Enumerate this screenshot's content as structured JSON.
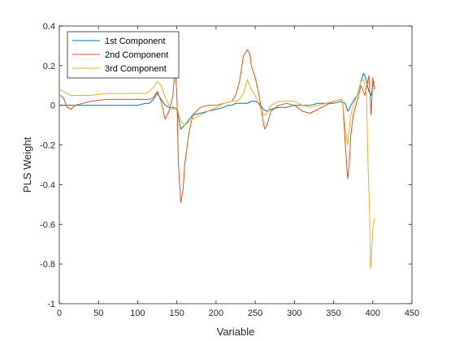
{
  "chart_data": {
    "type": "line",
    "title": "",
    "xlabel": "Variable",
    "ylabel": "PLS Weight",
    "xlim": [
      0,
      450
    ],
    "ylim": [
      -1,
      0.4
    ],
    "xticks": [
      0,
      50,
      100,
      150,
      200,
      250,
      300,
      350,
      400,
      450
    ],
    "yticks": [
      -1,
      -0.8,
      -0.6,
      -0.4,
      -0.2,
      0,
      0.2,
      0.4
    ],
    "xtick_labels": [
      "0",
      "50",
      "100",
      "150",
      "200",
      "250",
      "300",
      "350",
      "400",
      "450"
    ],
    "ytick_labels": [
      "-1",
      "-0.8",
      "-0.6",
      "-0.4",
      "-0.2",
      "0",
      "0.2",
      "0.4"
    ],
    "grid": false,
    "legend_position": "top-left",
    "series": [
      {
        "name": "1st Component",
        "color": "#0072BD",
        "x": [
          1,
          20,
          40,
          60,
          80,
          100,
          110,
          115,
          120,
          125,
          130,
          135,
          140,
          145,
          150,
          155,
          160,
          170,
          180,
          190,
          200,
          210,
          215,
          220,
          225,
          230,
          235,
          240,
          245,
          250,
          255,
          260,
          265,
          270,
          280,
          290,
          300,
          310,
          320,
          330,
          340,
          350,
          360,
          365,
          368,
          370,
          372,
          375,
          380,
          385,
          388,
          390,
          392,
          395,
          398,
          400,
          402
        ],
        "y": [
          0.0,
          0.0,
          0.0,
          0.0,
          0.0,
          0.0,
          0.01,
          0.01,
          0.03,
          0.06,
          0.03,
          0.0,
          -0.01,
          -0.01,
          -0.02,
          -0.12,
          -0.1,
          -0.05,
          -0.04,
          -0.03,
          -0.02,
          -0.01,
          0.0,
          0.0,
          0.01,
          0.01,
          0.01,
          0.01,
          0.02,
          0.02,
          0.01,
          -0.02,
          -0.03,
          -0.02,
          -0.01,
          -0.01,
          0.0,
          0.0,
          0.0,
          0.01,
          0.01,
          0.01,
          0.02,
          0.01,
          -0.03,
          -0.02,
          0.0,
          0.02,
          0.05,
          0.12,
          0.16,
          0.15,
          0.12,
          0.07,
          0.05,
          0.1,
          0.12
        ]
      },
      {
        "name": "2nd Component",
        "color": "#D95319",
        "x": [
          1,
          5,
          10,
          15,
          20,
          40,
          60,
          80,
          100,
          110,
          115,
          120,
          125,
          130,
          135,
          140,
          145,
          148,
          150,
          152,
          155,
          158,
          160,
          165,
          170,
          180,
          190,
          200,
          210,
          220,
          225,
          230,
          235,
          240,
          243,
          245,
          250,
          255,
          260,
          262,
          265,
          270,
          280,
          290,
          300,
          310,
          320,
          330,
          340,
          350,
          360,
          362,
          365,
          368,
          370,
          372,
          375,
          380,
          385,
          390,
          395,
          398,
          400,
          402
        ],
        "y": [
          0.05,
          0.04,
          -0.01,
          -0.02,
          0.0,
          0.02,
          0.03,
          0.03,
          0.03,
          0.03,
          0.03,
          0.04,
          0.07,
          0.02,
          -0.07,
          -0.03,
          0.05,
          0.2,
          0.05,
          -0.3,
          -0.49,
          -0.42,
          -0.3,
          -0.15,
          -0.05,
          -0.01,
          0.0,
          0.0,
          0.01,
          0.02,
          0.05,
          0.12,
          0.25,
          0.28,
          0.26,
          0.2,
          0.14,
          0.05,
          -0.08,
          -0.12,
          -0.1,
          -0.03,
          0.0,
          0.01,
          0.0,
          -0.03,
          -0.04,
          -0.02,
          0.0,
          0.02,
          0.03,
          0.0,
          -0.2,
          -0.37,
          -0.3,
          -0.15,
          -0.05,
          0.02,
          0.1,
          0.05,
          0.15,
          -0.05,
          0.14,
          0.08
        ]
      },
      {
        "name": "3rd Component",
        "color": "#EDB120",
        "x": [
          1,
          5,
          10,
          15,
          20,
          40,
          60,
          80,
          100,
          110,
          115,
          120,
          125,
          130,
          135,
          140,
          145,
          150,
          155,
          160,
          170,
          180,
          190,
          200,
          210,
          220,
          225,
          230,
          235,
          240,
          245,
          250,
          255,
          260,
          262,
          265,
          270,
          280,
          290,
          300,
          310,
          320,
          330,
          340,
          350,
          360,
          362,
          365,
          368,
          370,
          372,
          375,
          380,
          385,
          388,
          390,
          392,
          394,
          396,
          397,
          398,
          400,
          402
        ],
        "y": [
          0.08,
          0.07,
          0.06,
          0.05,
          0.05,
          0.05,
          0.06,
          0.06,
          0.06,
          0.06,
          0.07,
          0.09,
          0.12,
          0.1,
          0.04,
          0.0,
          -0.02,
          -0.01,
          -0.08,
          -0.1,
          -0.07,
          -0.05,
          -0.03,
          -0.01,
          0.01,
          0.02,
          0.02,
          0.03,
          0.06,
          0.13,
          0.08,
          0.05,
          0.0,
          -0.04,
          -0.05,
          -0.04,
          0.0,
          0.02,
          0.02,
          0.02,
          0.0,
          -0.01,
          0.0,
          0.01,
          0.02,
          0.03,
          0.0,
          -0.12,
          -0.2,
          -0.12,
          -0.05,
          0.0,
          0.05,
          0.12,
          0.13,
          0.1,
          0.05,
          -0.3,
          -0.55,
          -0.82,
          -0.8,
          -0.62,
          -0.57
        ]
      }
    ]
  }
}
